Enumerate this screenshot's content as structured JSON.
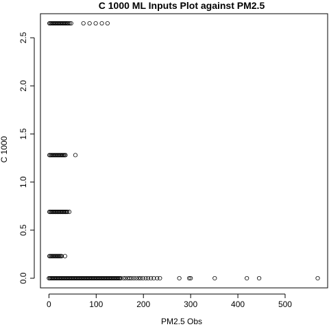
{
  "chart_data": {
    "type": "scatter",
    "title": "C 1000 ML Inputs Plot against PM2.5",
    "xlabel": "PM2.5 Obs",
    "ylabel": "C 1000",
    "xlim": [
      -18,
      590
    ],
    "ylim": [
      -0.1,
      2.75
    ],
    "xticks": [
      0,
      100,
      200,
      300,
      400,
      500
    ],
    "xtick_labels": [
      "0",
      "100",
      "200",
      "300",
      "400",
      "500"
    ],
    "yticks": [
      0.0,
      0.5,
      1.0,
      1.5,
      2.0,
      2.5
    ],
    "ytick_labels": [
      "0.0",
      "0.5",
      "1.0",
      "1.5",
      "2.0",
      "2.5"
    ],
    "grid": false,
    "marker": "open-circle",
    "series": [
      {
        "y": 2.65,
        "x": [
          1,
          3,
          5,
          7,
          9,
          11,
          13,
          15,
          17,
          19,
          21,
          23,
          25,
          27,
          29,
          31,
          33,
          35,
          37,
          39,
          41,
          44,
          47,
          73,
          86,
          99,
          112,
          124
        ]
      },
      {
        "y": 1.28,
        "x": [
          1,
          3,
          5,
          7,
          9,
          11,
          13,
          15,
          17,
          19,
          21,
          23,
          25,
          27,
          29,
          31,
          33,
          35,
          56
        ]
      },
      {
        "y": 0.69,
        "x": [
          1,
          3,
          5,
          7,
          9,
          11,
          13,
          15,
          17,
          19,
          21,
          23,
          25,
          27,
          29,
          31,
          33,
          35,
          37,
          39,
          43
        ]
      },
      {
        "y": 0.23,
        "x": [
          1,
          3,
          5,
          7,
          9,
          11,
          13,
          15,
          17,
          19,
          21,
          23,
          25,
          27,
          34
        ]
      },
      {
        "y": 0.0,
        "x": [
          0,
          2,
          4,
          6,
          8,
          10,
          12,
          14,
          16,
          18,
          20,
          22,
          24,
          26,
          28,
          30,
          32,
          34,
          36,
          38,
          40,
          42,
          44,
          46,
          48,
          50,
          52,
          54,
          56,
          58,
          60,
          62,
          64,
          66,
          68,
          70,
          72,
          74,
          76,
          78,
          80,
          82,
          84,
          86,
          88,
          90,
          92,
          94,
          96,
          98,
          100,
          102,
          104,
          106,
          108,
          110,
          112,
          114,
          116,
          118,
          120,
          122,
          124,
          126,
          128,
          130,
          132,
          134,
          136,
          138,
          140,
          142,
          144,
          146,
          148,
          150,
          152,
          158,
          162,
          167,
          171,
          175,
          180,
          185,
          190,
          194,
          199,
          205,
          210,
          216,
          222,
          229,
          235,
          276,
          297,
          300,
          351,
          419,
          445,
          569
        ]
      }
    ]
  }
}
